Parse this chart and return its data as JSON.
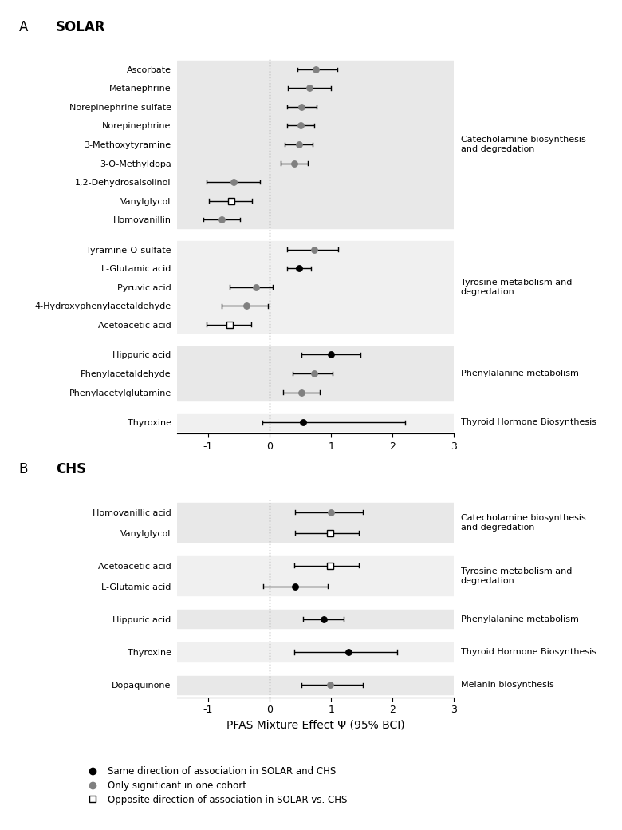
{
  "panel_A": {
    "title": "SOLAR",
    "groups": [
      {
        "name": "Catecholamine biosynthesis\nand degredation",
        "bg": "#e8e8e8",
        "items": [
          {
            "label": "Ascorbate",
            "est": 0.75,
            "lo": 0.45,
            "hi": 1.1,
            "shape": "circle_gray"
          },
          {
            "label": "Metanephrine",
            "est": 0.65,
            "lo": 0.3,
            "hi": 1.0,
            "shape": "circle_gray"
          },
          {
            "label": "Norepinephrine sulfate",
            "est": 0.52,
            "lo": 0.28,
            "hi": 0.76,
            "shape": "circle_gray"
          },
          {
            "label": "Norepinephrine",
            "est": 0.5,
            "lo": 0.28,
            "hi": 0.72,
            "shape": "circle_gray"
          },
          {
            "label": "3-Methoxytyramine",
            "est": 0.48,
            "lo": 0.25,
            "hi": 0.7,
            "shape": "circle_gray"
          },
          {
            "label": "3-O-Methyldopa",
            "est": 0.4,
            "lo": 0.18,
            "hi": 0.62,
            "shape": "circle_gray"
          },
          {
            "label": "1,2-Dehydrosalsolinol",
            "est": -0.58,
            "lo": -1.02,
            "hi": -0.15,
            "shape": "circle_gray"
          },
          {
            "label": "Vanylglycol",
            "est": -0.62,
            "lo": -0.98,
            "hi": -0.28,
            "shape": "square_open"
          },
          {
            "label": "Homovanillin",
            "est": -0.78,
            "lo": -1.08,
            "hi": -0.48,
            "shape": "circle_gray"
          }
        ]
      },
      {
        "name": "Tyrosine metabolism and\ndegredation",
        "bg": "#f0f0f0",
        "items": [
          {
            "label": "Tyramine-O-sulfate",
            "est": 0.72,
            "lo": 0.28,
            "hi": 1.12,
            "shape": "circle_gray"
          },
          {
            "label": "L-Glutamic acid",
            "est": 0.48,
            "lo": 0.28,
            "hi": 0.68,
            "shape": "circle_black"
          },
          {
            "label": "Pyruvic acid",
            "est": -0.22,
            "lo": -0.65,
            "hi": 0.05,
            "shape": "circle_gray"
          },
          {
            "label": "4-Hydroxyphenylacetaldehyde",
            "est": -0.38,
            "lo": -0.78,
            "hi": -0.02,
            "shape": "circle_gray"
          },
          {
            "label": "Acetoacetic acid",
            "est": -0.65,
            "lo": -1.02,
            "hi": -0.3,
            "shape": "square_open"
          }
        ]
      },
      {
        "name": "Phenylalanine metabolism",
        "bg": "#e8e8e8",
        "items": [
          {
            "label": "Hippuric acid",
            "est": 1.0,
            "lo": 0.52,
            "hi": 1.48,
            "shape": "circle_black"
          },
          {
            "label": "Phenylacetaldehyde",
            "est": 0.72,
            "lo": 0.38,
            "hi": 1.02,
            "shape": "circle_gray"
          },
          {
            "label": "Phenylacetylglutamine",
            "est": 0.52,
            "lo": 0.22,
            "hi": 0.82,
            "shape": "circle_gray"
          }
        ]
      },
      {
        "name": "Thyroid Hormone Biosynthesis",
        "bg": "#f0f0f0",
        "items": [
          {
            "label": "Thyroxine",
            "est": 0.55,
            "lo": -0.12,
            "hi": 2.2,
            "shape": "circle_black"
          }
        ]
      }
    ]
  },
  "panel_B": {
    "title": "CHS",
    "groups": [
      {
        "name": "Catecholamine biosynthesis\nand degredation",
        "bg": "#e8e8e8",
        "items": [
          {
            "label": "Homovanillic acid",
            "est": 1.0,
            "lo": 0.42,
            "hi": 1.52,
            "shape": "circle_gray"
          },
          {
            "label": "Vanylglycol",
            "est": 0.98,
            "lo": 0.42,
            "hi": 1.45,
            "shape": "square_open"
          }
        ]
      },
      {
        "name": "Tyrosine metabolism and\ndegredation",
        "bg": "#f0f0f0",
        "items": [
          {
            "label": "Acetoacetic acid",
            "est": 0.98,
            "lo": 0.4,
            "hi": 1.45,
            "shape": "square_open"
          },
          {
            "label": "L-Glutamic acid",
            "est": 0.42,
            "lo": -0.1,
            "hi": 0.95,
            "shape": "circle_black"
          }
        ]
      },
      {
        "name": "Phenylalanine metabolism",
        "bg": "#e8e8e8",
        "items": [
          {
            "label": "Hippuric acid",
            "est": 0.88,
            "lo": 0.55,
            "hi": 1.2,
            "shape": "circle_black"
          }
        ]
      },
      {
        "name": "Thyroid Hormone Biosynthesis",
        "bg": "#f0f0f0",
        "items": [
          {
            "label": "Thyroxine",
            "est": 1.28,
            "lo": 0.4,
            "hi": 2.08,
            "shape": "circle_black"
          }
        ]
      },
      {
        "name": "Melanin biosynthesis",
        "bg": "#e8e8e8",
        "items": [
          {
            "label": "Dopaquinone",
            "est": 0.98,
            "lo": 0.52,
            "hi": 1.52,
            "shape": "circle_gray"
          }
        ]
      }
    ]
  },
  "xlim": [
    -1.5,
    3.0
  ],
  "xticks": [
    -1,
    0,
    1,
    2,
    3
  ],
  "xlabel": "PFAS Mixture Effect Ψ (95% BCI)",
  "legend": [
    {
      "label": "Same direction of association in SOLAR and CHS",
      "shape": "circle_black"
    },
    {
      "label": "Only significant in one cohort",
      "shape": "circle_gray"
    },
    {
      "label": "Opposite direction of association in SOLAR vs. CHS",
      "shape": "square_open"
    }
  ],
  "colors": {
    "circle_black": "#000000",
    "circle_gray": "#808080",
    "square_open": "#000000",
    "bg_dark": "#e8e8e8",
    "bg_light": "#f0f0f0"
  }
}
